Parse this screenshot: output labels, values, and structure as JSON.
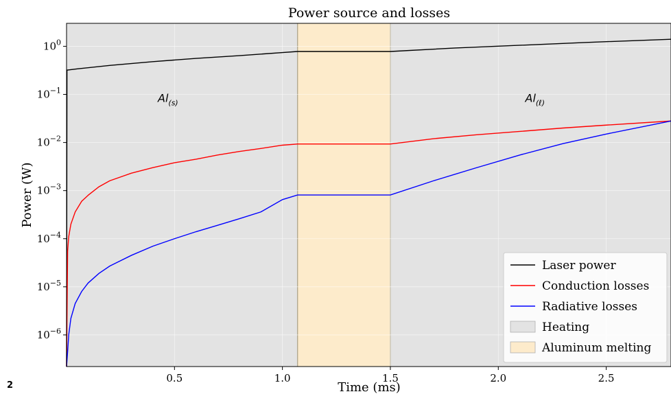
{
  "corner_label": "2",
  "chart_data": {
    "type": "line",
    "title": "Power source and losses",
    "xlabel": "Time (ms)",
    "ylabel": "Power (W)",
    "yscale": "log",
    "xlim": [
      0.0,
      2.8
    ],
    "ylim": [
      2.2e-07,
      3.0
    ],
    "xticks": [
      {
        "value": 0.5,
        "label": "0.5"
      },
      {
        "value": 1.0,
        "label": "1.0"
      },
      {
        "value": 1.5,
        "label": "1.5"
      },
      {
        "value": 2.0,
        "label": "2.0"
      },
      {
        "value": 2.5,
        "label": "2.5"
      }
    ],
    "yticks": [
      {
        "value": 1,
        "base": "10",
        "exp": "0"
      },
      {
        "value": 0.1,
        "base": "10",
        "exp": "−1"
      },
      {
        "value": 0.01,
        "base": "10",
        "exp": "−2"
      },
      {
        "value": 0.001,
        "base": "10",
        "exp": "−3"
      },
      {
        "value": 0.0001,
        "base": "10",
        "exp": "−4"
      },
      {
        "value": 1e-05,
        "base": "10",
        "exp": "−5"
      },
      {
        "value": 1e-06,
        "base": "10",
        "exp": "−6"
      }
    ],
    "grid": true,
    "regions": [
      {
        "name": "Heating",
        "x0": 0.0,
        "x1": 1.07,
        "color": "#e3e3e3"
      },
      {
        "name": "Aluminum melting",
        "x0": 1.07,
        "x1": 1.5,
        "color": "#fdebcb"
      },
      {
        "name": "Heating",
        "x0": 1.5,
        "x1": 2.8,
        "color": "#e3e3e3"
      }
    ],
    "series": [
      {
        "name": "Laser power",
        "color": "#000000",
        "x": [
          0.0,
          0.002,
          0.05,
          0.2,
          0.4,
          0.6,
          0.8,
          1.0,
          1.07,
          1.5,
          1.8,
          2.1,
          2.4,
          2.8
        ],
        "y": [
          2.2e-07,
          0.32,
          0.34,
          0.4,
          0.48,
          0.56,
          0.64,
          0.74,
          0.78,
          0.78,
          0.92,
          1.05,
          1.2,
          1.4
        ]
      },
      {
        "name": "Conduction losses",
        "color": "#ff0000",
        "x": [
          0.0,
          0.005,
          0.01,
          0.02,
          0.04,
          0.07,
          0.1,
          0.15,
          0.2,
          0.3,
          0.4,
          0.5,
          0.6,
          0.7,
          0.8,
          0.9,
          1.0,
          1.07,
          1.5,
          1.7,
          1.9,
          2.1,
          2.3,
          2.5,
          2.8
        ],
        "y": [
          2.2e-07,
          5.5e-05,
          0.00011,
          0.0002,
          0.00036,
          0.0006,
          0.0008,
          0.0012,
          0.0016,
          0.0023,
          0.003,
          0.0038,
          0.0045,
          0.0055,
          0.0065,
          0.0075,
          0.0088,
          0.0093,
          0.0093,
          0.012,
          0.0145,
          0.017,
          0.02,
          0.023,
          0.028
        ]
      },
      {
        "name": "Radiative losses",
        "color": "#0000ff",
        "x": [
          0.0,
          0.005,
          0.01,
          0.02,
          0.04,
          0.07,
          0.1,
          0.15,
          0.2,
          0.3,
          0.4,
          0.5,
          0.6,
          0.7,
          0.8,
          0.9,
          1.0,
          1.07,
          1.5,
          1.7,
          1.9,
          2.1,
          2.3,
          2.5,
          2.8
        ],
        "y": [
          2.2e-07,
          4.5e-07,
          1e-06,
          2.2e-06,
          4.5e-06,
          8e-06,
          1.2e-05,
          1.9e-05,
          2.7e-05,
          4.5e-05,
          7e-05,
          0.0001,
          0.00014,
          0.00019,
          0.00026,
          0.00036,
          0.00065,
          0.00081,
          0.00081,
          0.0016,
          0.003,
          0.0055,
          0.0095,
          0.015,
          0.028
        ]
      }
    ],
    "annotations": [
      {
        "base": "Al",
        "sub": "(s)",
        "x": 0.47,
        "y": 0.07
      },
      {
        "base": "Al",
        "sub": "(ℓ)",
        "x": 2.17,
        "y": 0.07
      }
    ],
    "legend": {
      "position": "lower-right",
      "entries": [
        {
          "label": "Laser power",
          "kind": "line",
          "color": "#000000"
        },
        {
          "label": "Conduction losses",
          "kind": "line",
          "color": "#ff0000"
        },
        {
          "label": "Radiative losses",
          "kind": "line",
          "color": "#0000ff"
        },
        {
          "label": "Heating",
          "kind": "patch",
          "color": "#e3e3e3"
        },
        {
          "label": "Aluminum melting",
          "kind": "patch",
          "color": "#fdebcb"
        }
      ]
    }
  }
}
